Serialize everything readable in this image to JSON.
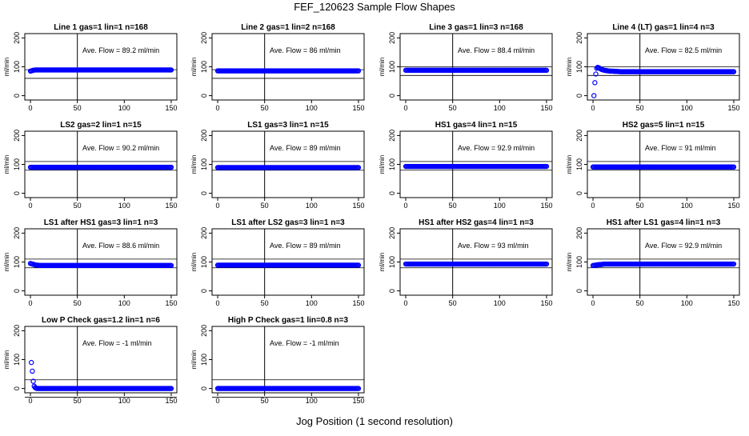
{
  "title": "FEF_120623  Sample Flow Shapes",
  "xlabel": "Jog Position (1 second resolution)",
  "ylabel": "ml/min",
  "chart_data": [
    {
      "type": "scatter",
      "title": "Line 1 gas=1 lin=1 n=168",
      "annotation": "Ave. Flow =  89.2  ml/min",
      "x_range": [
        0,
        150
      ],
      "ylim": [
        0,
        200
      ],
      "xticks": [
        0,
        50,
        100,
        150
      ],
      "yticks": [
        0,
        100,
        200
      ],
      "hline": [
        60,
        90
      ],
      "vline": 50,
      "series": [
        {
          "color": "#0000ff",
          "x": [
            0,
            1,
            2,
            3,
            5,
            150
          ],
          "y": [
            85,
            86,
            87,
            88,
            89,
            89
          ]
        }
      ]
    },
    {
      "type": "scatter",
      "title": "Line 2 gas=1 lin=2 n=168",
      "annotation": "Ave. Flow =  86  ml/min",
      "x_range": [
        0,
        150
      ],
      "ylim": [
        0,
        200
      ],
      "xticks": [
        0,
        50,
        100,
        150
      ],
      "yticks": [
        0,
        100,
        200
      ],
      "hline": [
        60,
        90
      ],
      "vline": 50,
      "series": [
        {
          "color": "#0000ff",
          "x": [
            0,
            150
          ],
          "y": [
            86,
            86
          ]
        }
      ]
    },
    {
      "type": "scatter",
      "title": "Line 3 gas=1 lin=3 n=168",
      "annotation": "Ave. Flow =  88.4  ml/min",
      "x_range": [
        0,
        150
      ],
      "ylim": [
        0,
        200
      ],
      "xticks": [
        0,
        50,
        100,
        150
      ],
      "yticks": [
        0,
        100,
        200
      ],
      "hline": [
        70,
        100
      ],
      "vline": 50,
      "series": [
        {
          "color": "#0000ff",
          "x": [
            0,
            150
          ],
          "y": [
            88,
            88
          ]
        }
      ]
    },
    {
      "type": "scatter",
      "title": "Line 4 (LT) gas=1 lin=4 n=3",
      "annotation": "Ave. Flow =  82.5  ml/min",
      "x_range": [
        0,
        150
      ],
      "ylim": [
        0,
        200
      ],
      "xticks": [
        0,
        50,
        100,
        150
      ],
      "yticks": [
        0,
        100,
        200
      ],
      "hline": [
        70,
        100
      ],
      "vline": 50,
      "series": [
        {
          "color": "#0000ff",
          "x": [
            1,
            2,
            3,
            4,
            5,
            6,
            7,
            8,
            9,
            10,
            12,
            14,
            16,
            18,
            20,
            25,
            30,
            150
          ],
          "y": [
            0,
            45,
            75,
            95,
            98,
            97,
            95,
            93,
            91,
            90,
            88,
            87,
            86,
            85,
            85,
            84,
            83,
            83
          ]
        }
      ]
    },
    {
      "type": "scatter",
      "title": "LS2 gas=2 lin=1 n=15",
      "annotation": "Ave. Flow =  90.2  ml/min",
      "x_range": [
        0,
        150
      ],
      "ylim": [
        0,
        200
      ],
      "xticks": [
        0,
        50,
        100,
        150
      ],
      "yticks": [
        0,
        100,
        200
      ],
      "hline": [
        80,
        110
      ],
      "vline": 50,
      "series": [
        {
          "color": "#0000ff",
          "x": [
            0,
            150
          ],
          "y": [
            90,
            90
          ]
        }
      ]
    },
    {
      "type": "scatter",
      "title": "LS1 gas=3 lin=1 n=15",
      "annotation": "Ave. Flow =  89  ml/min",
      "x_range": [
        0,
        150
      ],
      "ylim": [
        0,
        200
      ],
      "xticks": [
        0,
        50,
        100,
        150
      ],
      "yticks": [
        0,
        100,
        200
      ],
      "hline": [
        80,
        110
      ],
      "vline": 50,
      "series": [
        {
          "color": "#0000ff",
          "x": [
            0,
            150
          ],
          "y": [
            89,
            89
          ]
        }
      ]
    },
    {
      "type": "scatter",
      "title": "HS1 gas=4 lin=1 n=15",
      "annotation": "Ave. Flow =  92.9  ml/min",
      "x_range": [
        0,
        150
      ],
      "ylim": [
        0,
        200
      ],
      "xticks": [
        0,
        50,
        100,
        150
      ],
      "yticks": [
        0,
        100,
        200
      ],
      "hline": [
        80,
        110
      ],
      "vline": 50,
      "series": [
        {
          "color": "#0000ff",
          "x": [
            0,
            150
          ],
          "y": [
            93,
            93
          ]
        }
      ]
    },
    {
      "type": "scatter",
      "title": "HS2 gas=5 lin=1 n=15",
      "annotation": "Ave. Flow =  91  ml/min",
      "x_range": [
        0,
        150
      ],
      "ylim": [
        0,
        200
      ],
      "xticks": [
        0,
        50,
        100,
        150
      ],
      "yticks": [
        0,
        100,
        200
      ],
      "hline": [
        80,
        110
      ],
      "vline": 50,
      "series": [
        {
          "color": "#0000ff",
          "x": [
            0,
            150
          ],
          "y": [
            91,
            91
          ]
        }
      ]
    },
    {
      "type": "scatter",
      "title": "LS1 after HS1 gas=3 lin=1 n=3",
      "annotation": "Ave. Flow =  88.6  ml/min",
      "x_range": [
        0,
        150
      ],
      "ylim": [
        0,
        200
      ],
      "xticks": [
        0,
        50,
        100,
        150
      ],
      "yticks": [
        0,
        100,
        200
      ],
      "hline": [
        80,
        110
      ],
      "vline": 50,
      "series": [
        {
          "color": "#0000ff",
          "x": [
            0,
            1,
            2,
            3,
            4,
            5,
            6,
            8,
            10,
            150
          ],
          "y": [
            95,
            94,
            93,
            92,
            91,
            90,
            89,
            89,
            88,
            88
          ]
        }
      ]
    },
    {
      "type": "scatter",
      "title": "LS1 after LS2 gas=3 lin=1 n=3",
      "annotation": "Ave. Flow =  89  ml/min",
      "x_range": [
        0,
        150
      ],
      "ylim": [
        0,
        200
      ],
      "xticks": [
        0,
        50,
        100,
        150
      ],
      "yticks": [
        0,
        100,
        200
      ],
      "hline": [
        80,
        110
      ],
      "vline": 50,
      "series": [
        {
          "color": "#0000ff",
          "x": [
            0,
            150
          ],
          "y": [
            89,
            89
          ]
        }
      ]
    },
    {
      "type": "scatter",
      "title": "HS1 after HS2 gas=4 lin=1 n=3",
      "annotation": "Ave. Flow =  93  ml/min",
      "x_range": [
        0,
        150
      ],
      "ylim": [
        0,
        200
      ],
      "xticks": [
        0,
        50,
        100,
        150
      ],
      "yticks": [
        0,
        100,
        200
      ],
      "hline": [
        80,
        110
      ],
      "vline": 50,
      "series": [
        {
          "color": "#0000ff",
          "x": [
            0,
            150
          ],
          "y": [
            93,
            93
          ]
        }
      ]
    },
    {
      "type": "scatter",
      "title": "HS1 after LS1 gas=4 lin=1 n=3",
      "annotation": "Ave. Flow =  92.9  ml/min",
      "x_range": [
        0,
        150
      ],
      "ylim": [
        0,
        200
      ],
      "xticks": [
        0,
        50,
        100,
        150
      ],
      "yticks": [
        0,
        100,
        200
      ],
      "hline": [
        80,
        110
      ],
      "vline": 50,
      "series": [
        {
          "color": "#0000ff",
          "x": [
            0,
            1,
            2,
            3,
            4,
            5,
            6,
            8,
            10,
            12,
            150
          ],
          "y": [
            88,
            88,
            89,
            89,
            90,
            90,
            91,
            91,
            92,
            93,
            93
          ]
        }
      ]
    },
    {
      "type": "scatter",
      "title": "Low P Check gas=1.2 lin=1 n=6",
      "annotation": "Ave. Flow =  -1  ml/min",
      "x_range": [
        0,
        150
      ],
      "ylim": [
        0,
        200
      ],
      "xticks": [
        0,
        50,
        100,
        150
      ],
      "yticks": [
        0,
        100,
        200
      ],
      "hline": [
        -30,
        30
      ],
      "vline": 50,
      "series": [
        {
          "color": "#0000ff",
          "x": [
            1,
            2,
            3,
            4,
            5,
            6,
            7,
            8,
            10,
            150
          ],
          "y": [
            90,
            60,
            25,
            8,
            3,
            1,
            0,
            0,
            0,
            0
          ]
        }
      ]
    },
    {
      "type": "scatter",
      "title": "High P Check gas=1 lin=0.8 n=3",
      "annotation": "Ave. Flow =  -1  ml/min",
      "x_range": [
        0,
        150
      ],
      "ylim": [
        0,
        200
      ],
      "xticks": [
        0,
        50,
        100,
        150
      ],
      "yticks": [
        0,
        100,
        200
      ],
      "hline": [
        -30,
        30
      ],
      "vline": 50,
      "series": [
        {
          "color": "#0000ff",
          "x": [
            0,
            150
          ],
          "y": [
            0,
            0
          ]
        }
      ]
    }
  ]
}
